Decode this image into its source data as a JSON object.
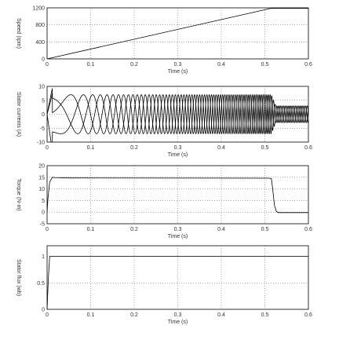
{
  "chart_data": [
    {
      "type": "line",
      "xlabel": "Time (s)",
      "ylabel": "Speed (rpm)",
      "xlim": [
        0,
        0.6
      ],
      "ylim": [
        0,
        1200
      ],
      "xticks": [
        "0",
        "0.1",
        "0.2",
        "0.3",
        "0.4",
        "0.5",
        "0.6"
      ],
      "yticks": [
        "0",
        "400",
        "800",
        "1200"
      ],
      "grid": true,
      "series": [
        {
          "x": [
            0,
            0.515,
            0.6
          ],
          "y": [
            0,
            1190,
            1190
          ]
        }
      ]
    },
    {
      "type": "line",
      "xlabel": "Time (s)",
      "ylabel": "Stator currents (A)",
      "xlim": [
        0,
        0.6
      ],
      "ylim": [
        -10,
        10
      ],
      "xticks": [
        "0",
        "0.1",
        "0.2",
        "0.3",
        "0.4",
        "0.5",
        "0.6"
      ],
      "yticks": [
        "-10",
        "-5",
        "0",
        "5",
        "10"
      ],
      "grid": true,
      "series": [
        {
          "x": [
            0,
            0.515,
            0.525,
            0.6
          ],
          "amplitude": [
            7,
            7,
            3,
            3
          ],
          "frequency_hz": [
            0,
            86,
            86,
            86
          ],
          "phase_deg": 0
        },
        {
          "x": [
            0,
            0.515,
            0.525,
            0.6
          ],
          "amplitude": [
            7,
            7,
            3,
            3
          ],
          "frequency_hz": [
            0,
            86,
            86,
            86
          ],
          "phase_deg": -120
        },
        {
          "x": [
            0,
            0.515,
            0.525,
            0.6
          ],
          "amplitude": [
            7,
            7,
            3,
            3
          ],
          "frequency_hz": [
            0,
            86,
            86,
            86
          ],
          "phase_deg": 120
        }
      ]
    },
    {
      "type": "line",
      "xlabel": "Time (s)",
      "ylabel": "Torque (N-m)",
      "xlim": [
        0,
        0.6
      ],
      "ylim": [
        -5,
        20
      ],
      "xticks": [
        "0",
        "0.1",
        "0.2",
        "0.3",
        "0.4",
        "0.5",
        "0.6"
      ],
      "yticks": [
        "-5",
        "0",
        "5",
        "10",
        "15",
        "20"
      ],
      "grid": true,
      "series": [
        {
          "x": [
            0,
            0.002,
            0.006,
            0.012,
            0.02,
            0.05,
            0.51,
            0.515,
            0.518,
            0.522,
            0.526,
            0.53,
            0.6
          ],
          "y": [
            0,
            6,
            13,
            15,
            14.8,
            14.7,
            14.6,
            14.4,
            10,
            3,
            0.5,
            -0.2,
            -0.2
          ]
        }
      ]
    },
    {
      "type": "line",
      "xlabel": "Time (s)",
      "ylabel": "Stator flux (wb)",
      "xlim": [
        0,
        0.6
      ],
      "ylim": [
        0,
        1.2
      ],
      "xticks": [
        "0",
        "0.1",
        "0.2",
        "0.3",
        "0.4",
        "0.5",
        "0.6"
      ],
      "yticks": [
        "0",
        "0.5",
        "1"
      ],
      "grid": true,
      "series": [
        {
          "x": [
            0,
            0.003,
            0.006,
            0.6
          ],
          "y": [
            0,
            0.6,
            1.0,
            1.0
          ]
        }
      ]
    }
  ]
}
